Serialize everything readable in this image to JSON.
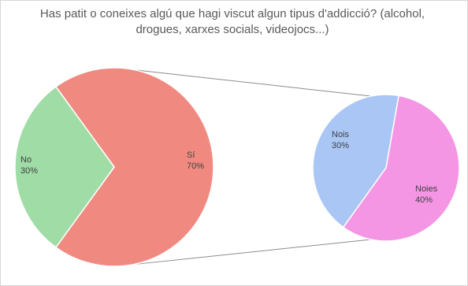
{
  "chart_data": {
    "type": "pie",
    "title": "Has patit o coneixes algú que hagi viscut algun tipus d'addicció? (alcohol, drogues, xarxes socials, videojocs...)",
    "main_pie": {
      "slices": [
        {
          "label": "Sí",
          "value": 70,
          "value_label": "70%",
          "color": "#f08a80"
        },
        {
          "label": "No",
          "value": 30,
          "value_label": "30%",
          "color": "#9fdca6"
        }
      ]
    },
    "breakdown_pie": {
      "of": "Sí",
      "slices": [
        {
          "label": "Nois",
          "value": 30,
          "value_label": "30%",
          "color": "#a9c6f5"
        },
        {
          "label": "Noies",
          "value": 40,
          "value_label": "40%",
          "color": "#f496e4"
        }
      ]
    },
    "connector_color": "#8c8c8c"
  }
}
